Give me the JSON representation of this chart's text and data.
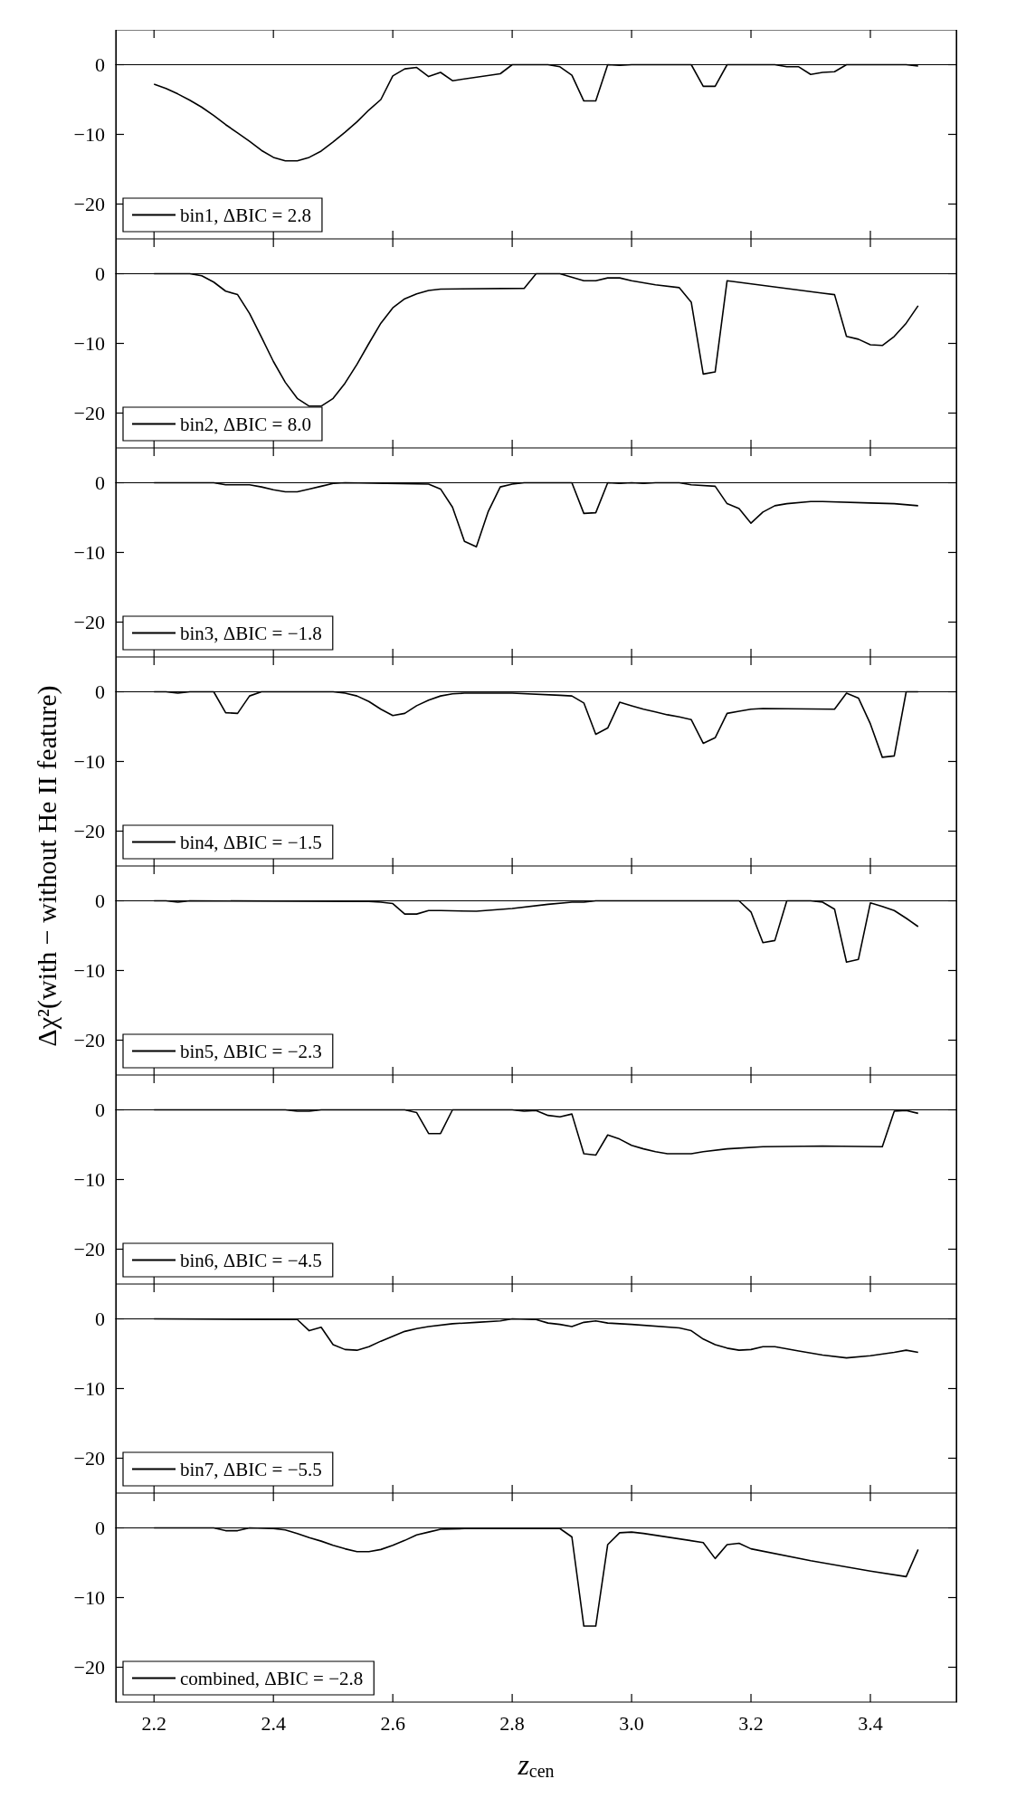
{
  "chart_data": [
    {
      "type": "line",
      "xlim": [
        2.136,
        3.544
      ],
      "ylim": [
        -25,
        5
      ],
      "xticks": [
        2.2,
        2.4,
        2.6,
        2.8,
        3,
        3.2,
        3.4
      ],
      "yticks": [
        -20,
        -10,
        0
      ],
      "legend": "bottom left",
      "tick_labels": "y",
      "series": [
        {
          "name": "bin1, ΔBIC = 2.8",
          "color": "#000000",
          "x": [
            2.2,
            2.22,
            2.24,
            2.26,
            2.28,
            2.3,
            2.32,
            2.34,
            2.36,
            2.38,
            2.4,
            2.42,
            2.44,
            2.46,
            2.48,
            2.5,
            2.52,
            2.54,
            2.56,
            2.58,
            2.6,
            2.62,
            2.64,
            2.66,
            2.68,
            2.7,
            2.78,
            2.8,
            2.86,
            2.88,
            2.9,
            2.92,
            2.94,
            2.96,
            2.98,
            3.0,
            3.1,
            3.12,
            3.14,
            3.16,
            3.24,
            3.26,
            3.28,
            3.3,
            3.32,
            3.34,
            3.36,
            3.46,
            3.48
          ],
          "values": [
            -2.8,
            -3.4,
            -4.2,
            -5.1,
            -6.1,
            -7.3,
            -8.6,
            -9.8,
            -11.0,
            -12.3,
            -13.3,
            -13.8,
            -13.8,
            -13.3,
            -12.4,
            -11.1,
            -9.7,
            -8.2,
            -6.5,
            -5.0,
            -1.6,
            -0.6,
            -0.4,
            -1.7,
            -1.1,
            -2.3,
            -1.3,
            0,
            0,
            -0.3,
            -1.5,
            -5.2,
            -5.2,
            0,
            -0.1,
            0,
            0,
            -3.1,
            -3.1,
            0,
            0,
            -0.3,
            -0.3,
            -1.4,
            -1.1,
            -1.0,
            0,
            0,
            -0.2
          ]
        }
      ]
    },
    {
      "type": "line",
      "xlim": [
        2.136,
        3.544
      ],
      "ylim": [
        -25,
        5
      ],
      "xticks": [
        2.2,
        2.4,
        2.6,
        2.8,
        3,
        3.2,
        3.4
      ],
      "yticks": [
        -20,
        -10,
        0
      ],
      "legend": "bottom left",
      "tick_labels": "y",
      "series": [
        {
          "name": "bin2, ΔBIC = 8.0",
          "color": "#000000",
          "x": [
            2.2,
            2.26,
            2.28,
            2.3,
            2.32,
            2.34,
            2.36,
            2.38,
            2.4,
            2.42,
            2.44,
            2.46,
            2.48,
            2.5,
            2.52,
            2.54,
            2.56,
            2.58,
            2.6,
            2.62,
            2.64,
            2.66,
            2.68,
            2.82,
            2.84,
            2.88,
            2.92,
            2.94,
            2.96,
            2.98,
            3.0,
            3.04,
            3.08,
            3.1,
            3.12,
            3.14,
            3.16,
            3.32,
            3.34,
            3.36,
            3.38,
            3.4,
            3.42,
            3.44,
            3.46,
            3.48
          ],
          "values": [
            0,
            0,
            -0.3,
            -1.2,
            -2.5,
            -3.0,
            -5.7,
            -9.1,
            -12.6,
            -15.6,
            -17.9,
            -19.0,
            -19.0,
            -17.9,
            -15.7,
            -13.0,
            -10.0,
            -7.1,
            -4.9,
            -3.6,
            -2.9,
            -2.4,
            -2.2,
            -2.1,
            0,
            0,
            -1.0,
            -1.0,
            -0.6,
            -0.6,
            -1.0,
            -1.6,
            -2.0,
            -4.1,
            -14.4,
            -14.1,
            -1.0,
            -2.8,
            -3.0,
            -9.0,
            -9.4,
            -10.2,
            -10.3,
            -9.0,
            -7.1,
            -4.6
          ]
        }
      ]
    },
    {
      "type": "line",
      "xlim": [
        2.136,
        3.544
      ],
      "ylim": [
        -25,
        5
      ],
      "xticks": [
        2.2,
        2.4,
        2.6,
        2.8,
        3,
        3.2,
        3.4
      ],
      "yticks": [
        -20,
        -10,
        0
      ],
      "legend": "bottom left",
      "tick_labels": "y",
      "series": [
        {
          "name": "bin3, ΔBIC = −1.8",
          "color": "#000000",
          "x": [
            2.2,
            2.3,
            2.32,
            2.36,
            2.38,
            2.4,
            2.42,
            2.44,
            2.46,
            2.48,
            2.5,
            2.52,
            2.66,
            2.68,
            2.7,
            2.72,
            2.74,
            2.76,
            2.78,
            2.8,
            2.82,
            2.9,
            2.92,
            2.94,
            2.96,
            2.98,
            3.0,
            3.02,
            3.04,
            3.08,
            3.1,
            3.14,
            3.16,
            3.18,
            3.2,
            3.22,
            3.24,
            3.26,
            3.3,
            3.32,
            3.4,
            3.44,
            3.48
          ],
          "values": [
            0,
            0,
            -0.3,
            -0.3,
            -0.6,
            -1.0,
            -1.3,
            -1.3,
            -0.9,
            -0.5,
            -0.1,
            0,
            -0.2,
            -0.9,
            -3.5,
            -8.4,
            -9.2,
            -4.1,
            -0.6,
            -0.2,
            0,
            0,
            -4.4,
            -4.3,
            0,
            -0.1,
            0,
            -0.1,
            0,
            0,
            -0.3,
            -0.5,
            -3.0,
            -3.7,
            -5.8,
            -4.2,
            -3.3,
            -3.0,
            -2.7,
            -2.7,
            -2.9,
            -3.0,
            -3.3
          ]
        }
      ]
    },
    {
      "type": "line",
      "xlim": [
        2.136,
        3.544
      ],
      "ylim": [
        -25,
        5
      ],
      "xticks": [
        2.2,
        2.4,
        2.6,
        2.8,
        3,
        3.2,
        3.4
      ],
      "yticks": [
        -20,
        -10,
        0
      ],
      "legend": "bottom left",
      "tick_labels": "y",
      "ylabel": "Δχ²(with − without He II feature)",
      "series": [
        {
          "name": "bin4, ΔBIC = −1.5",
          "color": "#000000",
          "x": [
            2.2,
            2.22,
            2.24,
            2.26,
            2.3,
            2.32,
            2.34,
            2.36,
            2.38,
            2.5,
            2.52,
            2.54,
            2.56,
            2.58,
            2.6,
            2.62,
            2.64,
            2.66,
            2.68,
            2.7,
            2.72,
            2.8,
            2.88,
            2.9,
            2.92,
            2.94,
            2.96,
            2.98,
            3.0,
            3.02,
            3.04,
            3.06,
            3.08,
            3.1,
            3.12,
            3.14,
            3.16,
            3.18,
            3.2,
            3.22,
            3.34,
            3.36,
            3.38,
            3.4,
            3.42,
            3.44,
            3.46,
            3.48
          ],
          "values": [
            0,
            0,
            -0.2,
            0,
            0,
            -3.0,
            -3.1,
            -0.6,
            0,
            0,
            -0.2,
            -0.6,
            -1.4,
            -2.5,
            -3.4,
            -3.1,
            -2.0,
            -1.2,
            -0.6,
            -0.3,
            -0.2,
            -0.2,
            -0.5,
            -0.6,
            -1.6,
            -6.1,
            -5.2,
            -1.5,
            -2.0,
            -2.5,
            -2.9,
            -3.3,
            -3.6,
            -4.0,
            -7.4,
            -6.6,
            -3.1,
            -2.8,
            -2.5,
            -2.4,
            -2.5,
            -0.2,
            -0.9,
            -4.6,
            -9.4,
            -9.2,
            0,
            0
          ]
        }
      ]
    },
    {
      "type": "line",
      "xlim": [
        2.136,
        3.544
      ],
      "ylim": [
        -25,
        5
      ],
      "xticks": [
        2.2,
        2.4,
        2.6,
        2.8,
        3,
        3.2,
        3.4
      ],
      "yticks": [
        -20,
        -10,
        0
      ],
      "legend": "bottom left",
      "tick_labels": "y",
      "series": [
        {
          "name": "bin5, ΔBIC = −2.3",
          "color": "#000000",
          "x": [
            2.2,
            2.22,
            2.24,
            2.26,
            2.56,
            2.58,
            2.6,
            2.62,
            2.64,
            2.66,
            2.68,
            2.74,
            2.8,
            2.86,
            2.9,
            2.92,
            2.94,
            3.18,
            3.2,
            3.22,
            3.24,
            3.26,
            3.3,
            3.32,
            3.34,
            3.36,
            3.38,
            3.4,
            3.42,
            3.44,
            3.46,
            3.48
          ],
          "values": [
            0,
            0,
            -0.2,
            0,
            -0.1,
            -0.2,
            -0.4,
            -1.9,
            -1.9,
            -1.4,
            -1.4,
            -1.5,
            -1.1,
            -0.5,
            -0.2,
            -0.2,
            0,
            0,
            -1.6,
            -6.0,
            -5.7,
            0,
            0,
            -0.2,
            -1.2,
            -8.8,
            -8.4,
            -0.3,
            -0.8,
            -1.4,
            -2.5,
            -3.7
          ]
        }
      ]
    },
    {
      "type": "line",
      "xlim": [
        2.136,
        3.544
      ],
      "ylim": [
        -25,
        5
      ],
      "xticks": [
        2.2,
        2.4,
        2.6,
        2.8,
        3,
        3.2,
        3.4
      ],
      "yticks": [
        -20,
        -10,
        0
      ],
      "legend": "bottom left",
      "tick_labels": "y",
      "series": [
        {
          "name": "bin6, ΔBIC = −4.5",
          "color": "#000000",
          "x": [
            2.2,
            2.42,
            2.44,
            2.46,
            2.48,
            2.62,
            2.64,
            2.66,
            2.68,
            2.7,
            2.8,
            2.82,
            2.84,
            2.86,
            2.88,
            2.9,
            2.92,
            2.94,
            2.96,
            2.98,
            3.0,
            3.02,
            3.04,
            3.06,
            3.08,
            3.1,
            3.12,
            3.16,
            3.22,
            3.32,
            3.42,
            3.44,
            3.46,
            3.48
          ],
          "values": [
            0,
            0,
            -0.2,
            -0.2,
            0,
            0,
            -0.4,
            -3.4,
            -3.4,
            0,
            0,
            -0.2,
            -0.1,
            -0.8,
            -1.0,
            -0.6,
            -6.3,
            -6.5,
            -3.6,
            -4.2,
            -5.1,
            -5.6,
            -6.0,
            -6.3,
            -6.3,
            -6.3,
            -6.0,
            -5.6,
            -5.3,
            -5.2,
            -5.3,
            -0.2,
            -0.1,
            -0.5
          ]
        }
      ]
    },
    {
      "type": "line",
      "xlim": [
        2.136,
        3.544
      ],
      "ylim": [
        -25,
        5
      ],
      "xticks": [
        2.2,
        2.4,
        2.6,
        2.8,
        3,
        3.2,
        3.4
      ],
      "yticks": [
        -20,
        -10,
        0
      ],
      "legend": "bottom left",
      "tick_labels": "y",
      "series": [
        {
          "name": "bin7, ΔBIC = −5.5",
          "color": "#000000",
          "x": [
            2.2,
            2.44,
            2.46,
            2.48,
            2.5,
            2.52,
            2.54,
            2.56,
            2.58,
            2.6,
            2.62,
            2.64,
            2.66,
            2.7,
            2.74,
            2.78,
            2.8,
            2.84,
            2.86,
            2.88,
            2.9,
            2.92,
            2.94,
            2.96,
            3.0,
            3.08,
            3.1,
            3.12,
            3.14,
            3.16,
            3.18,
            3.2,
            3.22,
            3.24,
            3.28,
            3.32,
            3.36,
            3.4,
            3.44,
            3.46,
            3.48
          ],
          "values": [
            0,
            -0.1,
            -1.7,
            -1.2,
            -3.7,
            -4.4,
            -4.5,
            -4.0,
            -3.2,
            -2.5,
            -1.8,
            -1.4,
            -1.1,
            -0.7,
            -0.5,
            -0.3,
            0,
            -0.1,
            -0.6,
            -0.8,
            -1.1,
            -0.5,
            -0.3,
            -0.6,
            -0.8,
            -1.3,
            -1.7,
            -2.9,
            -3.7,
            -4.2,
            -4.5,
            -4.4,
            -4.0,
            -4.0,
            -4.6,
            -5.2,
            -5.6,
            -5.3,
            -4.8,
            -4.5,
            -4.8
          ]
        }
      ]
    },
    {
      "type": "line",
      "xlim": [
        2.136,
        3.544
      ],
      "ylim": [
        -25,
        5
      ],
      "xticks": [
        2.2,
        2.4,
        2.6,
        2.8,
        {
          "value": 3,
          "label": "3.0"
        },
        3.2,
        3.4
      ],
      "yticks": [
        -20,
        -10,
        0
      ],
      "legend": "bottom left",
      "xlabel": "z$_{cen}$",
      "series": [
        {
          "name": "combined, ΔBIC = −2.8",
          "color": "#000000",
          "x": [
            2.2,
            2.3,
            2.32,
            2.34,
            2.36,
            2.4,
            2.42,
            2.44,
            2.46,
            2.48,
            2.5,
            2.52,
            2.54,
            2.56,
            2.58,
            2.6,
            2.62,
            2.64,
            2.66,
            2.68,
            2.72,
            2.88,
            2.9,
            2.92,
            2.94,
            2.96,
            2.98,
            3.0,
            3.02,
            3.12,
            3.14,
            3.16,
            3.18,
            3.2,
            3.3,
            3.4,
            3.46,
            3.48
          ],
          "values": [
            0,
            0,
            -0.4,
            -0.4,
            0,
            -0.1,
            -0.3,
            -0.8,
            -1.4,
            -1.9,
            -2.5,
            -3.0,
            -3.4,
            -3.4,
            -3.1,
            -2.5,
            -1.8,
            -1.0,
            -0.6,
            -0.2,
            -0.1,
            -0.1,
            -1.3,
            -14.1,
            -14.1,
            -2.4,
            -0.7,
            -0.6,
            -0.8,
            -2.1,
            -4.4,
            -2.4,
            -2.2,
            -3.0,
            -4.7,
            -6.2,
            -7.0,
            -3.1
          ]
        }
      ]
    }
  ]
}
